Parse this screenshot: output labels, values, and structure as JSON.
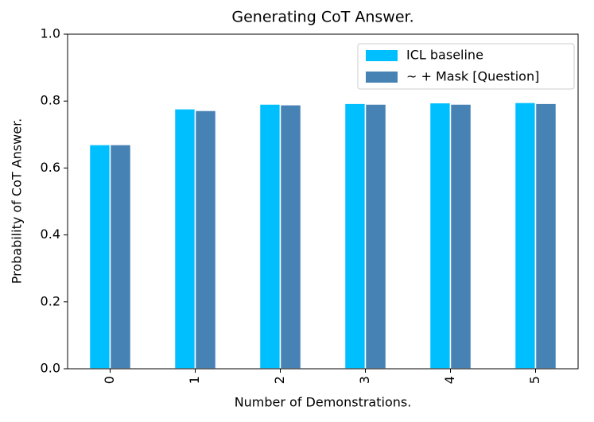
{
  "chart_data": {
    "type": "bar",
    "title": "Generating CoT Answer.",
    "x_label": "Number of Demonstrations.",
    "y_label": "Probability of CoT Answer.",
    "categories": [
      "0",
      "1",
      "2",
      "3",
      "4",
      "5"
    ],
    "series": [
      {
        "name": "ICL baseline",
        "color": "#00bfff",
        "values": [
          0.67,
          0.777,
          0.791,
          0.793,
          0.795,
          0.796
        ]
      },
      {
        "name": "~ + Mask [Question]",
        "color": "#4682b4",
        "values": [
          0.67,
          0.772,
          0.789,
          0.791,
          0.791,
          0.793
        ]
      }
    ],
    "ylim": [
      0,
      1.0
    ],
    "yticks": [
      {
        "value": 0,
        "label": "0.0"
      },
      {
        "value": 0.2,
        "label": "0.2"
      },
      {
        "value": 0.4,
        "label": "0.4"
      },
      {
        "value": 0.6,
        "label": "0.6"
      },
      {
        "value": 0.8,
        "label": "0.8"
      },
      {
        "value": 1.0,
        "label": "1.0"
      }
    ],
    "legend": "upper right"
  }
}
